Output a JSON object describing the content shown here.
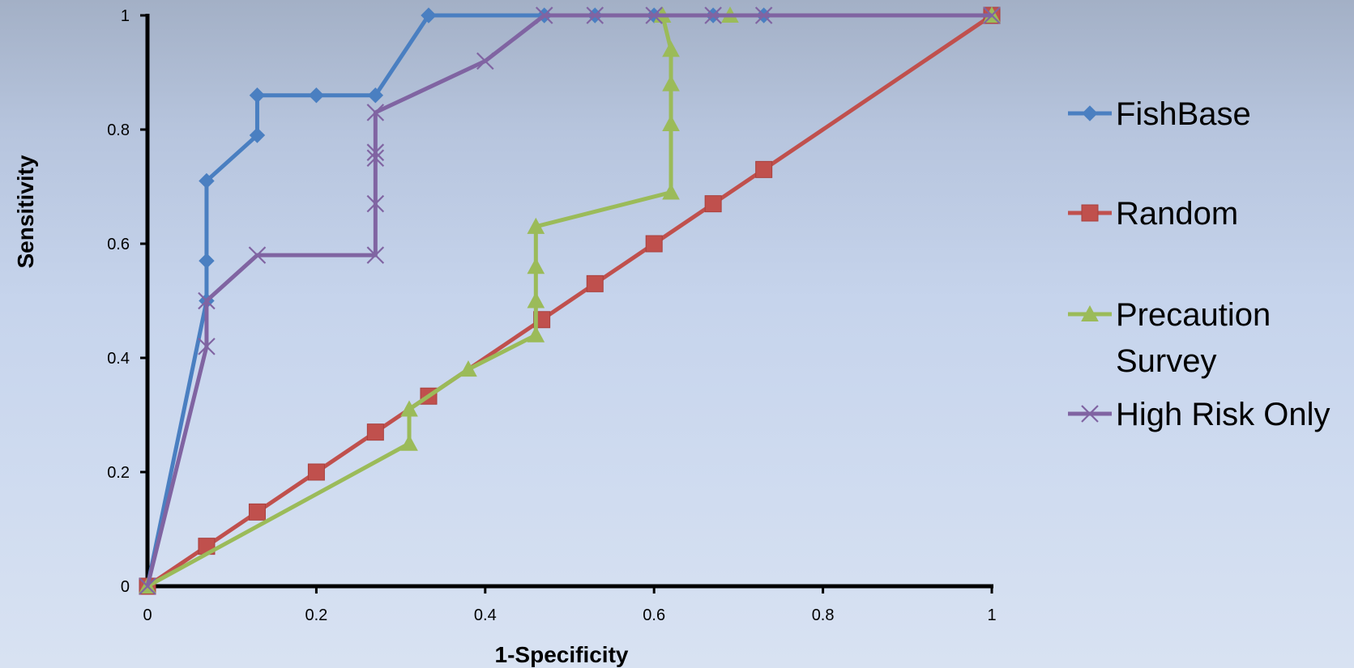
{
  "chart_data": {
    "type": "line",
    "xlabel": "1-Specificity",
    "ylabel": "Sensitivity",
    "xlim": [
      0,
      1
    ],
    "ylim": [
      0,
      1
    ],
    "x_ticks": [
      "0",
      "0.2",
      "0.4",
      "0.6",
      "0.8",
      "1"
    ],
    "y_ticks": [
      "0",
      "0.2",
      "0.4",
      "0.6",
      "0.8",
      "1"
    ],
    "grid": false,
    "legend_position": "right",
    "series": [
      {
        "name": "FishBase",
        "color": "#4a7fc1",
        "marker": "diamond",
        "points": [
          [
            0,
            0
          ],
          [
            0.07,
            0.5
          ],
          [
            0.07,
            0.57
          ],
          [
            0.07,
            0.71
          ],
          [
            0.13,
            0.79
          ],
          [
            0.13,
            0.86
          ],
          [
            0.2,
            0.86
          ],
          [
            0.27,
            0.86
          ],
          [
            0.333,
            1
          ],
          [
            0.47,
            1
          ],
          [
            0.53,
            1
          ],
          [
            0.6,
            1
          ],
          [
            0.67,
            1
          ],
          [
            0.73,
            1
          ],
          [
            1,
            1
          ]
        ]
      },
      {
        "name": "Random",
        "color": "#c0504d",
        "marker": "square",
        "points": [
          [
            0,
            0
          ],
          [
            0.07,
            0.07
          ],
          [
            0.13,
            0.13
          ],
          [
            0.2,
            0.2
          ],
          [
            0.27,
            0.27
          ],
          [
            0.333,
            0.333
          ],
          [
            0.467,
            0.467
          ],
          [
            0.53,
            0.53
          ],
          [
            0.6,
            0.6
          ],
          [
            0.67,
            0.67
          ],
          [
            0.73,
            0.73
          ],
          [
            1,
            1
          ]
        ]
      },
      {
        "name": "Precaution Survey",
        "color": "#9bbb59",
        "marker": "triangle",
        "points": [
          [
            0,
            0
          ],
          [
            0.31,
            0.25
          ],
          [
            0.31,
            0.31
          ],
          [
            0.38,
            0.38
          ],
          [
            0.46,
            0.44
          ],
          [
            0.46,
            0.5
          ],
          [
            0.46,
            0.56
          ],
          [
            0.46,
            0.63
          ],
          [
            0.62,
            0.69
          ],
          [
            0.62,
            0.81
          ],
          [
            0.62,
            0.88
          ],
          [
            0.62,
            0.94
          ],
          [
            0.61,
            1
          ],
          [
            0.69,
            1
          ],
          [
            1,
            1
          ]
        ]
      },
      {
        "name": "High Risk Only",
        "color": "#8064a2",
        "marker": "x",
        "points": [
          [
            0,
            0
          ],
          [
            0.07,
            0.42
          ],
          [
            0.07,
            0.5
          ],
          [
            0.13,
            0.58
          ],
          [
            0.27,
            0.58
          ],
          [
            0.27,
            0.67
          ],
          [
            0.27,
            0.75
          ],
          [
            0.27,
            0.76
          ],
          [
            0.27,
            0.83
          ],
          [
            0.4,
            0.92
          ],
          [
            0.47,
            1
          ],
          [
            0.53,
            1
          ],
          [
            0.6,
            1
          ],
          [
            0.67,
            1
          ],
          [
            0.73,
            1
          ],
          [
            1,
            1
          ]
        ]
      }
    ]
  },
  "legend": {
    "items": [
      {
        "lines": [
          "FishBase"
        ]
      },
      {
        "lines": [
          "Random"
        ]
      },
      {
        "lines": [
          "Precaution",
          "Survey"
        ]
      },
      {
        "lines": [
          "High Risk Only"
        ]
      }
    ]
  }
}
